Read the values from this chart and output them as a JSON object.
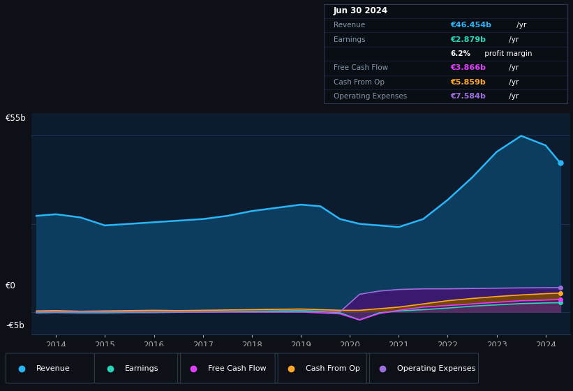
{
  "background_color": "#0d1117",
  "chart_bg_color": "#0d1b2e",
  "grid_color": "#1e3a5f",
  "years": [
    2013.6,
    2014.0,
    2014.5,
    2015.0,
    2015.5,
    2016.0,
    2016.5,
    2017.0,
    2017.5,
    2018.0,
    2018.5,
    2019.0,
    2019.4,
    2019.8,
    2020.2,
    2020.6,
    2021.0,
    2021.5,
    2022.0,
    2022.5,
    2023.0,
    2023.5,
    2024.0,
    2024.3
  ],
  "revenue": [
    30.0,
    30.5,
    29.5,
    27.0,
    27.5,
    28.0,
    28.5,
    29.0,
    30.0,
    31.5,
    32.5,
    33.5,
    33.0,
    29.0,
    27.5,
    27.0,
    26.5,
    29.0,
    35.0,
    42.0,
    50.0,
    55.0,
    52.0,
    46.5
  ],
  "earnings": [
    -0.3,
    -0.2,
    -0.3,
    -0.3,
    -0.2,
    -0.2,
    -0.1,
    0.0,
    0.1,
    0.2,
    0.3,
    0.4,
    0.2,
    -0.3,
    -2.5,
    -0.3,
    0.3,
    0.7,
    1.2,
    1.8,
    2.2,
    2.6,
    2.8,
    2.879
  ],
  "free_cash_flow": [
    0.0,
    0.0,
    0.0,
    0.0,
    0.0,
    0.0,
    0.0,
    0.0,
    0.0,
    0.0,
    0.0,
    0.0,
    -0.3,
    -0.6,
    -2.5,
    -0.5,
    0.5,
    1.5,
    2.0,
    2.5,
    3.0,
    3.5,
    3.7,
    3.866
  ],
  "cash_from_op": [
    0.3,
    0.4,
    0.2,
    0.3,
    0.4,
    0.5,
    0.4,
    0.5,
    0.6,
    0.7,
    0.8,
    0.9,
    0.7,
    0.5,
    0.5,
    1.0,
    1.5,
    2.5,
    3.5,
    4.2,
    4.8,
    5.3,
    5.7,
    5.859
  ],
  "operating_expenses": [
    0.0,
    0.0,
    0.0,
    0.0,
    0.0,
    0.0,
    0.0,
    0.0,
    0.0,
    0.0,
    0.0,
    0.0,
    0.0,
    0.0,
    5.5,
    6.5,
    7.0,
    7.2,
    7.2,
    7.3,
    7.4,
    7.5,
    7.55,
    7.584
  ],
  "revenue_color": "#29b6f6",
  "revenue_fill": "#0d3d5e",
  "earnings_color": "#26d7b8",
  "free_cash_flow_color": "#e040fb",
  "cash_from_op_color": "#ffa726",
  "operating_expenses_color": "#9c6fdd",
  "operating_expenses_fill": "#3a1a6e",
  "cash_from_op_fill_color": "#7a4a00",
  "free_cash_flow_fill_color": "#5a1060",
  "ylim": [
    -7,
    62
  ],
  "xticks": [
    2014,
    2015,
    2016,
    2017,
    2018,
    2019,
    2020,
    2021,
    2022,
    2023,
    2024
  ],
  "info_box": {
    "date": "Jun 30 2024",
    "rows": [
      {
        "label": "Revenue",
        "value": "€46.454b /yr",
        "color": "#29b6f6"
      },
      {
        "label": "Earnings",
        "value": "€2.879b /yr",
        "color": "#26d7b8"
      },
      {
        "label": "",
        "value": "6.2% profit margin",
        "color": "#ffffff"
      },
      {
        "label": "Free Cash Flow",
        "value": "€3.866b /yr",
        "color": "#e040fb"
      },
      {
        "label": "Cash From Op",
        "value": "€5.859b /yr",
        "color": "#ffa726"
      },
      {
        "label": "Operating Expenses",
        "value": "€7.584b /yr",
        "color": "#9c6fdd"
      }
    ]
  },
  "legend": [
    {
      "label": "Revenue",
      "color": "#29b6f6"
    },
    {
      "label": "Earnings",
      "color": "#26d7b8"
    },
    {
      "label": "Free Cash Flow",
      "color": "#e040fb"
    },
    {
      "label": "Cash From Op",
      "color": "#ffa726"
    },
    {
      "label": "Operating Expenses",
      "color": "#9c6fdd"
    }
  ]
}
